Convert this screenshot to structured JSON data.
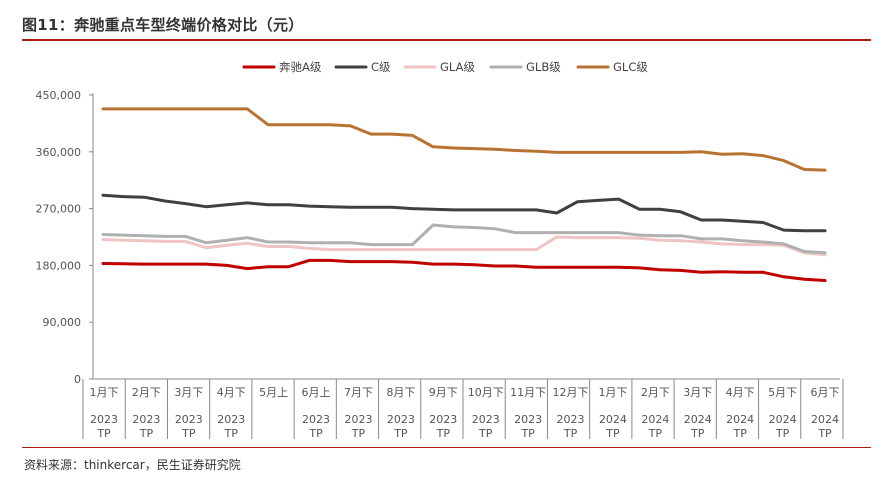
{
  "title": "图11：奔驰重点车型终端价格对比（元）",
  "source": "资料来源：thinkercar，民生证券研究院",
  "chart_data": {
    "type": "line",
    "ylim": [
      0,
      450000
    ],
    "yticks": [
      "450,000",
      "360,000",
      "270,000",
      "180,000",
      "90,000",
      "0"
    ],
    "ytick_values": [
      450000,
      360000,
      270000,
      180000,
      90000,
      0
    ],
    "xtick_labels": [
      [
        "1月下",
        "2023",
        "TP"
      ],
      [
        "2月下",
        "2023",
        "TP"
      ],
      [
        "3月下",
        "2023",
        "TP"
      ],
      [
        "4月下",
        "2023",
        "TP"
      ],
      [
        "5月上",
        "",
        ""
      ],
      [
        "6月上",
        "2023",
        "TP"
      ],
      [
        "7月下",
        "2023",
        "TP"
      ],
      [
        "8月下",
        "2023",
        "TP"
      ],
      [
        "9月下",
        "2023",
        "TP"
      ],
      [
        "10月下",
        "2023",
        "TP"
      ],
      [
        "11月下",
        "2023",
        "TP"
      ],
      [
        "12月下",
        "2023",
        "TP"
      ],
      [
        "1月下",
        "2024",
        "TP"
      ],
      [
        "2月下",
        "2024",
        "TP"
      ],
      [
        "3月下",
        "2024",
        "TP"
      ],
      [
        "4月下",
        "2024",
        "TP"
      ],
      [
        "5月下",
        "2024",
        "TP"
      ],
      [
        "6月下",
        "2024",
        "TP"
      ]
    ],
    "n_points": 36,
    "grid": false,
    "legend_position": "top",
    "series": [
      {
        "name": "奔驰A级",
        "color": "#c00000",
        "values": [
          183000,
          182500,
          182000,
          182000,
          182000,
          182000,
          180000,
          175000,
          178000,
          178000,
          188000,
          188000,
          186000,
          186000,
          186000,
          185000,
          182000,
          182000,
          181000,
          179000,
          179000,
          177000,
          177000,
          177000,
          177000,
          177000,
          176000,
          173000,
          172000,
          169000,
          170000,
          169000,
          169000,
          162000,
          158000,
          156000
        ]
      },
      {
        "name": "C级",
        "color": "#404040",
        "values": [
          291000,
          289000,
          288000,
          282000,
          278000,
          273000,
          276000,
          279000,
          276000,
          276000,
          274000,
          273000,
          272000,
          272000,
          272000,
          270000,
          269000,
          268000,
          268000,
          268000,
          268000,
          268000,
          263000,
          281000,
          283000,
          285000,
          269000,
          269000,
          265000,
          252000,
          252000,
          250000,
          248000,
          236000,
          235000,
          235000
        ]
      },
      {
        "name": "GLA级",
        "color": "#f0c4c4",
        "values": [
          221000,
          220000,
          219000,
          218000,
          218000,
          208000,
          212000,
          215000,
          210000,
          210000,
          207000,
          205000,
          205000,
          205000,
          205000,
          205000,
          205000,
          205000,
          205000,
          205000,
          205000,
          205000,
          225000,
          224000,
          224000,
          224000,
          223000,
          220000,
          219000,
          217000,
          214000,
          213000,
          213000,
          212000,
          200000,
          197000
        ]
      },
      {
        "name": "GLB级",
        "color": "#b0b0b0",
        "values": [
          229000,
          228000,
          227000,
          226000,
          226000,
          216000,
          220000,
          224000,
          217000,
          217000,
          216000,
          216000,
          216000,
          213000,
          213000,
          213000,
          244000,
          241000,
          240000,
          238000,
          232000,
          232000,
          232000,
          232000,
          232000,
          232000,
          228000,
          227000,
          227000,
          222000,
          222000,
          219000,
          217000,
          214000,
          202000,
          200000
        ]
      },
      {
        "name": "GLC级",
        "color": "#b87333",
        "values": [
          428000,
          428000,
          428000,
          428000,
          428000,
          428000,
          428000,
          428000,
          403000,
          403000,
          403000,
          403000,
          401000,
          388000,
          388000,
          386000,
          368000,
          366000,
          365000,
          364000,
          362000,
          361000,
          359000,
          359000,
          359000,
          359000,
          359000,
          359000,
          359000,
          360000,
          356000,
          357000,
          354000,
          346000,
          332000,
          331000
        ]
      }
    ]
  }
}
